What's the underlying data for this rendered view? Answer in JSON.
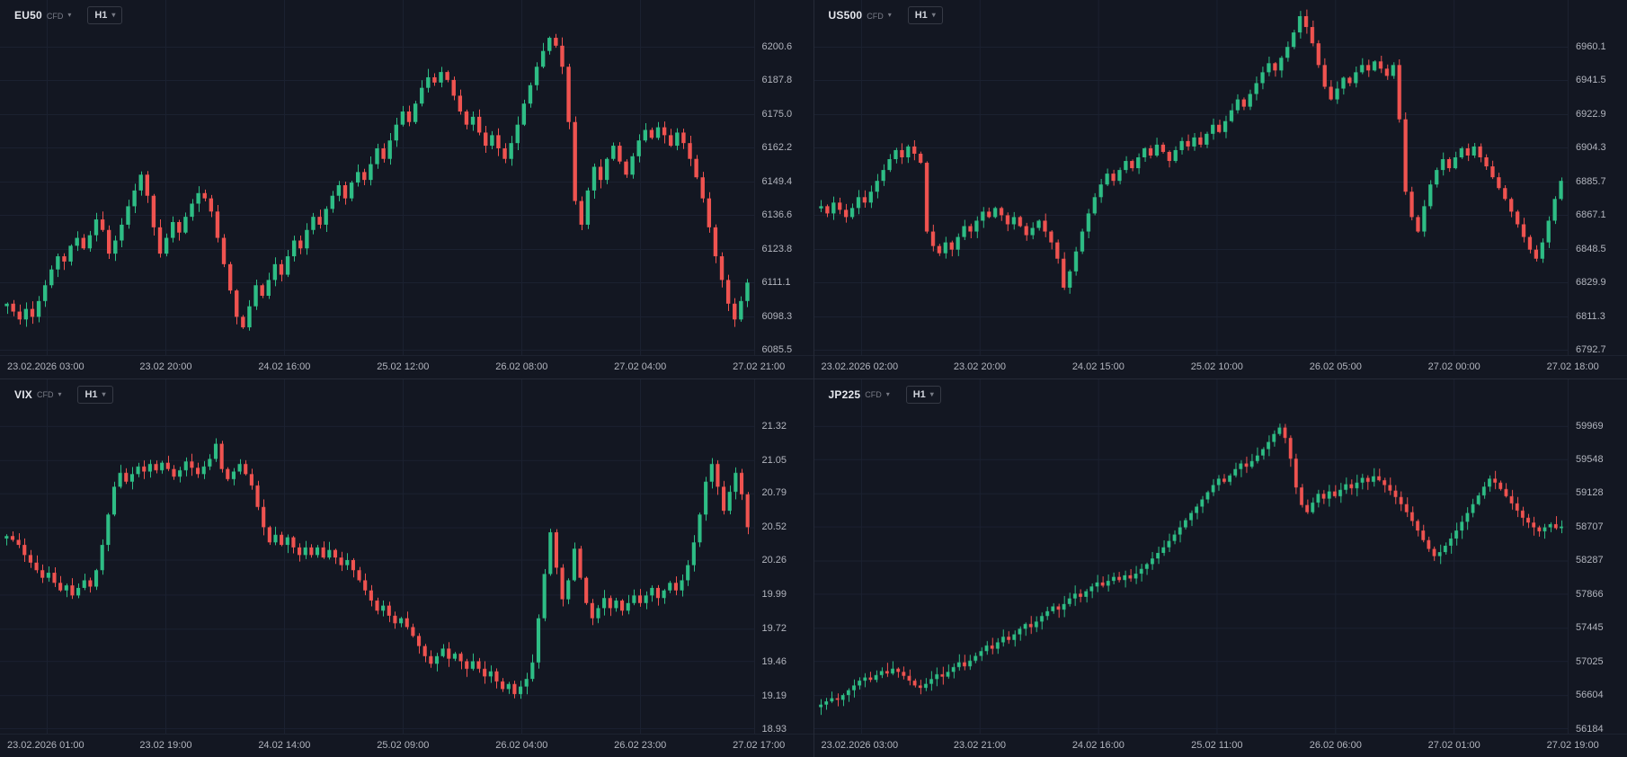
{
  "icons": {
    "caret_down": "▾"
  },
  "colors": {
    "background": "#131722",
    "panel_border": "#262b38",
    "grid": "#1b2130",
    "axis_text": "#b2b5be",
    "header_text": "#e6e8ee",
    "muted_text": "#787b86",
    "up": "#2ebd85",
    "down": "#ef5350"
  },
  "chart_data": [
    {
      "type": "candlestick",
      "symbol": "EU50",
      "instrument_type": "CFD",
      "timeframe": "H1",
      "ylim": [
        6085.5,
        6200.6
      ],
      "grid": true,
      "y_ticks": [
        "6200.6",
        "6187.8",
        "6175.0",
        "6162.2",
        "6149.4",
        "6136.6",
        "6123.8",
        "6111.1",
        "6098.3",
        "6085.5"
      ],
      "x_ticks": [
        "23.02.2026 03:00",
        "23.02 20:00",
        "24.02 16:00",
        "25.02 12:00",
        "26.02 08:00",
        "27.02 04:00",
        "27.02 21:00"
      ],
      "wick": 3.2,
      "closes": [
        6103,
        6100,
        6097,
        6101,
        6098,
        6104,
        6110,
        6116,
        6121,
        6119,
        6125,
        6128,
        6124,
        6129,
        6135,
        6131,
        6122,
        6127,
        6133,
        6140,
        6146,
        6152,
        6144,
        6132,
        6122,
        6128,
        6134,
        6130,
        6136,
        6141,
        6145,
        6143,
        6138,
        6128,
        6118,
        6108,
        6098,
        6094,
        6102,
        6110,
        6106,
        6112,
        6118,
        6114,
        6121,
        6127,
        6124,
        6131,
        6136,
        6133,
        6139,
        6144,
        6148,
        6143,
        6149,
        6153,
        6150,
        6156,
        6162,
        6158,
        6165,
        6171,
        6176,
        6172,
        6179,
        6185,
        6189,
        6187,
        6191,
        6188,
        6182,
        6176,
        6171,
        6174,
        6168,
        6163,
        6167,
        6162,
        6158,
        6164,
        6171,
        6179,
        6186,
        6193,
        6199,
        6204,
        6201,
        6193,
        6172,
        6142,
        6133,
        6146,
        6155,
        6150,
        6158,
        6163,
        6157,
        6152,
        6159,
        6165,
        6169,
        6166,
        6170,
        6167,
        6163,
        6168,
        6164,
        6158,
        6151,
        6143,
        6132,
        6121,
        6112,
        6103,
        6097,
        6104,
        6111
      ]
    },
    {
      "type": "candlestick",
      "symbol": "US500",
      "instrument_type": "CFD",
      "timeframe": "H1",
      "ylim": [
        6792.7,
        6960.1
      ],
      "grid": true,
      "y_ticks": [
        "6960.1",
        "6941.5",
        "6922.9",
        "6904.3",
        "6885.7",
        "6867.1",
        "6848.5",
        "6829.9",
        "6811.3",
        "6792.7"
      ],
      "x_ticks": [
        "23.02.2026 02:00",
        "23.02 20:00",
        "24.02 15:00",
        "25.02 10:00",
        "26.02 05:00",
        "27.02 00:00",
        "27.02 18:00"
      ],
      "wick": 4.0,
      "closes": [
        6872,
        6868,
        6874,
        6870,
        6866,
        6871,
        6877,
        6874,
        6880,
        6886,
        6892,
        6898,
        6903,
        6899,
        6905,
        6901,
        6896,
        6858,
        6850,
        6846,
        6852,
        6848,
        6855,
        6861,
        6858,
        6864,
        6869,
        6866,
        6871,
        6867,
        6862,
        6866,
        6861,
        6856,
        6860,
        6864,
        6858,
        6852,
        6843,
        6827,
        6836,
        6847,
        6858,
        6868,
        6877,
        6884,
        6890,
        6886,
        6892,
        6897,
        6893,
        6899,
        6904,
        6900,
        6906,
        6902,
        6897,
        6903,
        6908,
        6905,
        6910,
        6906,
        6912,
        6917,
        6913,
        6919,
        6925,
        6931,
        6927,
        6934,
        6940,
        6946,
        6951,
        6947,
        6954,
        6960,
        6968,
        6977,
        6971,
        6962,
        6950,
        6938,
        6931,
        6937,
        6943,
        6940,
        6946,
        6950,
        6947,
        6952,
        6948,
        6944,
        6950,
        6920,
        6880,
        6866,
        6858,
        6872,
        6884,
        6892,
        6898,
        6893,
        6899,
        6904,
        6900,
        6905,
        6899,
        6894,
        6888,
        6882,
        6876,
        6869,
        6862,
        6855,
        6848,
        6843,
        6852,
        6864,
        6876,
        6886
      ]
    },
    {
      "type": "candlestick",
      "symbol": "VIX",
      "instrument_type": "CFD",
      "timeframe": "H1",
      "ylim": [
        18.93,
        21.32
      ],
      "grid": true,
      "y_ticks": [
        "21.32",
        "21.05",
        "20.79",
        "20.52",
        "20.26",
        "19.99",
        "19.72",
        "19.46",
        "19.19",
        "18.93"
      ],
      "x_ticks": [
        "23.02.2026 01:00",
        "23.02 19:00",
        "24.02 14:00",
        "25.02 09:00",
        "26.02 04:00",
        "26.02 23:00",
        "27.02 17:00"
      ],
      "wick": 0.065,
      "closes": [
        20.45,
        20.42,
        20.38,
        20.3,
        20.24,
        20.18,
        20.12,
        20.16,
        20.08,
        20.02,
        20.06,
        19.98,
        20.04,
        20.1,
        20.05,
        20.18,
        20.38,
        20.62,
        20.84,
        20.95,
        20.88,
        20.94,
        21.0,
        20.96,
        21.02,
        20.97,
        21.03,
        20.98,
        20.92,
        20.97,
        21.04,
        20.99,
        20.94,
        21.0,
        21.06,
        21.18,
        20.98,
        20.9,
        20.96,
        21.02,
        20.94,
        20.85,
        20.68,
        20.52,
        20.4,
        20.46,
        20.38,
        20.44,
        20.36,
        20.3,
        20.36,
        20.3,
        20.36,
        20.28,
        20.34,
        20.28,
        20.22,
        20.26,
        20.18,
        20.1,
        20.02,
        19.94,
        19.86,
        19.9,
        19.82,
        19.76,
        19.8,
        19.73,
        19.66,
        19.58,
        19.5,
        19.44,
        19.5,
        19.56,
        19.48,
        19.52,
        19.46,
        19.4,
        19.46,
        19.4,
        19.34,
        19.38,
        19.3,
        19.24,
        19.28,
        19.2,
        19.26,
        19.32,
        19.45,
        19.8,
        20.15,
        20.48,
        20.2,
        19.95,
        20.1,
        20.35,
        20.12,
        19.92,
        19.8,
        19.88,
        19.96,
        19.88,
        19.94,
        19.86,
        19.92,
        19.98,
        19.92,
        19.98,
        20.04,
        19.96,
        20.02,
        20.08,
        20.02,
        20.1,
        20.22,
        20.4,
        20.62,
        20.88,
        21.02,
        20.84,
        20.65,
        20.8,
        20.95,
        20.78,
        20.52
      ]
    },
    {
      "type": "candlestick",
      "symbol": "JP225",
      "instrument_type": "CFD",
      "timeframe": "H1",
      "ylim": [
        56184,
        59969
      ],
      "grid": true,
      "y_ticks": [
        "59969",
        "59548",
        "59128",
        "58707",
        "58287",
        "57866",
        "57445",
        "57025",
        "56604",
        "56184"
      ],
      "x_ticks": [
        "23.02.2026 03:00",
        "23.02 21:00",
        "24.02 16:00",
        "25.02 11:00",
        "26.02 06:00",
        "27.02 01:00",
        "27.02 19:00"
      ],
      "wick": 105,
      "closes": [
        56480,
        56520,
        56560,
        56540,
        56600,
        56660,
        56720,
        56780,
        56820,
        56790,
        56850,
        56900,
        56870,
        56930,
        56890,
        56840,
        56780,
        56720,
        56690,
        56740,
        56800,
        56860,
        56830,
        56890,
        56950,
        57010,
        56960,
        57030,
        57090,
        57150,
        57220,
        57180,
        57260,
        57330,
        57290,
        57360,
        57430,
        57490,
        57450,
        57520,
        57590,
        57650,
        57710,
        57670,
        57740,
        57810,
        57870,
        57830,
        57900,
        57960,
        58010,
        57970,
        58030,
        58080,
        58040,
        58100,
        58060,
        58120,
        58180,
        58240,
        58310,
        58380,
        58450,
        58530,
        58610,
        58700,
        58790,
        58880,
        58960,
        59050,
        59140,
        59230,
        59310,
        59270,
        59350,
        59430,
        59500,
        59460,
        59530,
        59600,
        59680,
        59770,
        59870,
        59950,
        59820,
        59560,
        59200,
        58980,
        58890,
        59010,
        59120,
        59060,
        59150,
        59090,
        59170,
        59240,
        59190,
        59260,
        59320,
        59270,
        59340,
        59290,
        59230,
        59160,
        59080,
        58990,
        58890,
        58780,
        58660,
        58540,
        58430,
        58340,
        58390,
        58470,
        58560,
        58660,
        58770,
        58880,
        58990,
        59100,
        59210,
        59310,
        59260,
        59180,
        59090,
        59000,
        58910,
        58820,
        58760,
        58700,
        58650,
        58700,
        58740,
        58690,
        58710
      ]
    }
  ]
}
